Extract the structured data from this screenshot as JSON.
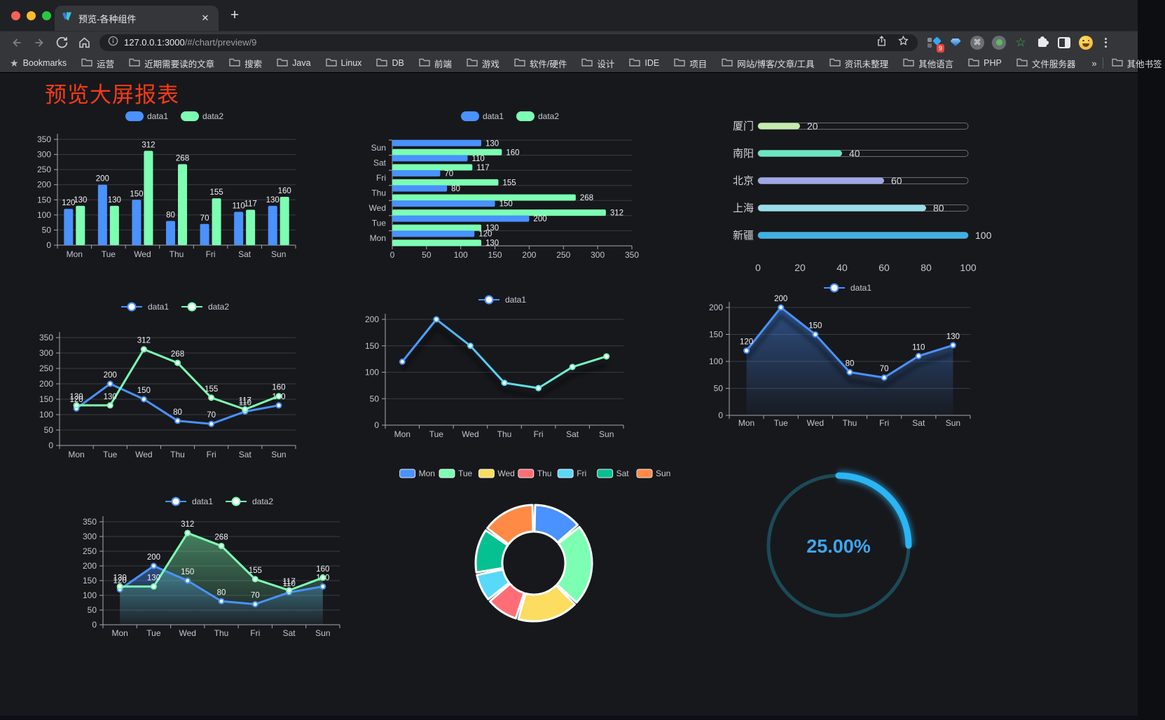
{
  "browser": {
    "traffic_lights": [
      {
        "name": "close",
        "color": "#ff5f57"
      },
      {
        "name": "minimize",
        "color": "#febc2e"
      },
      {
        "name": "zoom",
        "color": "#28c840"
      }
    ],
    "tab": {
      "title": "预览-各种组件",
      "close_glyph": "✕",
      "new_tab_glyph": "+"
    },
    "url": {
      "host": "127.0.0.1:3000",
      "path": "/#/chart/preview/9"
    },
    "extensions": {
      "badge": "9",
      "command_glyph": "⌘",
      "star_glyph": "☆"
    },
    "bookmarks": {
      "star_label": "Bookmarks",
      "folders": [
        "运营",
        "近期需要读的文章",
        "搜索",
        "Java",
        "Linux",
        "DB",
        "前端",
        "游戏",
        "软件/硬件",
        "设计",
        "IDE",
        "项目",
        "网站/博客/文章/工具",
        "资讯未整理",
        "其他语言",
        "PHP",
        "文件服务器"
      ],
      "overflow_glyph": "»",
      "other_label": "其他书签"
    }
  },
  "page": {
    "title": "预览大屏报表",
    "title_color": "#f63b16"
  },
  "chart_data": [
    {
      "type": "bar",
      "orientation": "vertical",
      "legend": [
        "data1",
        "data2"
      ],
      "categories": [
        "Mon",
        "Tue",
        "Wed",
        "Thu",
        "Fri",
        "Sat",
        "Sun"
      ],
      "series": [
        {
          "name": "data1",
          "color": "#4992ff",
          "values": [
            120,
            200,
            150,
            80,
            70,
            110,
            130
          ]
        },
        {
          "name": "data2",
          "color": "#7cffb2",
          "values": [
            130,
            130,
            312,
            268,
            155,
            117,
            160
          ]
        }
      ],
      "y_axis": {
        "min": 0,
        "max": 350,
        "ticks": [
          0,
          50,
          100,
          150,
          200,
          250,
          300,
          350
        ]
      }
    },
    {
      "type": "bar",
      "orientation": "horizontal",
      "legend": [
        "data1",
        "data2"
      ],
      "categories_top_to_bottom": [
        "Sun",
        "Sat",
        "Fri",
        "Thu",
        "Wed",
        "Tue",
        "Mon"
      ],
      "series": [
        {
          "name": "data1",
          "color": "#4992ff",
          "values_top_to_bottom": [
            130,
            110,
            70,
            80,
            150,
            200,
            120
          ]
        },
        {
          "name": "data2",
          "color": "#7cffb2",
          "values_top_to_bottom": [
            160,
            117,
            155,
            268,
            312,
            130,
            130
          ]
        }
      ],
      "x_axis": {
        "min": 0,
        "max": 350,
        "ticks": [
          0,
          50,
          100,
          150,
          200,
          250,
          300,
          350
        ]
      }
    },
    {
      "type": "progress",
      "x_axis": {
        "min": 0,
        "max": 100,
        "ticks": [
          0,
          20,
          40,
          60,
          80,
          100
        ]
      },
      "rows": [
        {
          "label": "厦门",
          "value": 20,
          "color": "#c4ebad"
        },
        {
          "label": "南阳",
          "value": 40,
          "color": "#6be6c1"
        },
        {
          "label": "北京",
          "value": 60,
          "color": "#a0a7e6"
        },
        {
          "label": "上海",
          "value": 80,
          "color": "#96dee8"
        },
        {
          "label": "新疆",
          "value": 100,
          "color": "#3fb1e3"
        }
      ]
    },
    {
      "type": "line",
      "legend": [
        "data1",
        "data2"
      ],
      "categories": [
        "Mon",
        "Tue",
        "Wed",
        "Thu",
        "Fri",
        "Sat",
        "Sun"
      ],
      "series": [
        {
          "name": "data1",
          "color": "#4992ff",
          "values": [
            120,
            200,
            150,
            80,
            70,
            110,
            130
          ],
          "labels": true
        },
        {
          "name": "data2",
          "color": "#7cffb2",
          "values": [
            130,
            130,
            312,
            268,
            155,
            117,
            160
          ],
          "labels": true
        }
      ],
      "y_axis": {
        "min": 0,
        "max": 350,
        "ticks": [
          0,
          50,
          100,
          150,
          200,
          250,
          300,
          350
        ]
      }
    },
    {
      "type": "line",
      "legend": [
        "data1"
      ],
      "categories": [
        "Mon",
        "Tue",
        "Wed",
        "Thu",
        "Fri",
        "Sat",
        "Sun"
      ],
      "series": [
        {
          "name": "data1",
          "gradient": [
            "#4992ff",
            "#58d9f9",
            "#7cffb2"
          ],
          "values": [
            120,
            200,
            150,
            80,
            70,
            110,
            130
          ],
          "labels": false,
          "shadow": true
        }
      ],
      "y_axis": {
        "min": 0,
        "max": 200,
        "ticks": [
          0,
          50,
          100,
          150,
          200
        ]
      }
    },
    {
      "type": "line",
      "legend": [
        "data1"
      ],
      "categories": [
        "Mon",
        "Tue",
        "Wed",
        "Thu",
        "Fri",
        "Sat",
        "Sun"
      ],
      "series": [
        {
          "name": "data1",
          "color": "#4992ff",
          "values": [
            120,
            200,
            150,
            80,
            70,
            110,
            130
          ],
          "labels": true,
          "area": true,
          "shadow": true
        }
      ],
      "y_axis": {
        "min": 0,
        "max": 200,
        "ticks": [
          0,
          50,
          100,
          150,
          200
        ]
      }
    },
    {
      "type": "line",
      "legend": [
        "data1",
        "data2"
      ],
      "categories": [
        "Mon",
        "Tue",
        "Wed",
        "Thu",
        "Fri",
        "Sat",
        "Sun"
      ],
      "series": [
        {
          "name": "data1",
          "color": "#4992ff",
          "values": [
            120,
            200,
            150,
            80,
            70,
            110,
            130
          ],
          "labels": true,
          "area": true
        },
        {
          "name": "data2",
          "color": "#7cffb2",
          "values": [
            130,
            130,
            312,
            268,
            155,
            117,
            160
          ],
          "labels": true,
          "area": true
        }
      ],
      "y_axis": {
        "min": 0,
        "max": 350,
        "ticks": [
          0,
          50,
          100,
          150,
          200,
          250,
          300,
          350
        ]
      }
    },
    {
      "type": "pie",
      "legend": [
        "Mon",
        "Tue",
        "Wed",
        "Thu",
        "Fri",
        "Sat",
        "Sun"
      ],
      "items": [
        {
          "name": "Mon",
          "value": 120,
          "color": "#4992ff"
        },
        {
          "name": "Tue",
          "value": 200,
          "color": "#7cffb2"
        },
        {
          "name": "Wed",
          "value": 150,
          "color": "#fddd60"
        },
        {
          "name": "Thu",
          "value": 80,
          "color": "#ff6e76"
        },
        {
          "name": "Fri",
          "value": 70,
          "color": "#58d9f9"
        },
        {
          "name": "Sat",
          "value": 110,
          "color": "#05c091"
        },
        {
          "name": "Sun",
          "value": 130,
          "color": "#ff8a45"
        }
      ]
    },
    {
      "type": "gauge",
      "value_percent": 25,
      "label": "25.00%",
      "arc_color": "#2ab5f5",
      "track_color": "#1c4a57",
      "text_color": "#3fa6ee"
    }
  ]
}
